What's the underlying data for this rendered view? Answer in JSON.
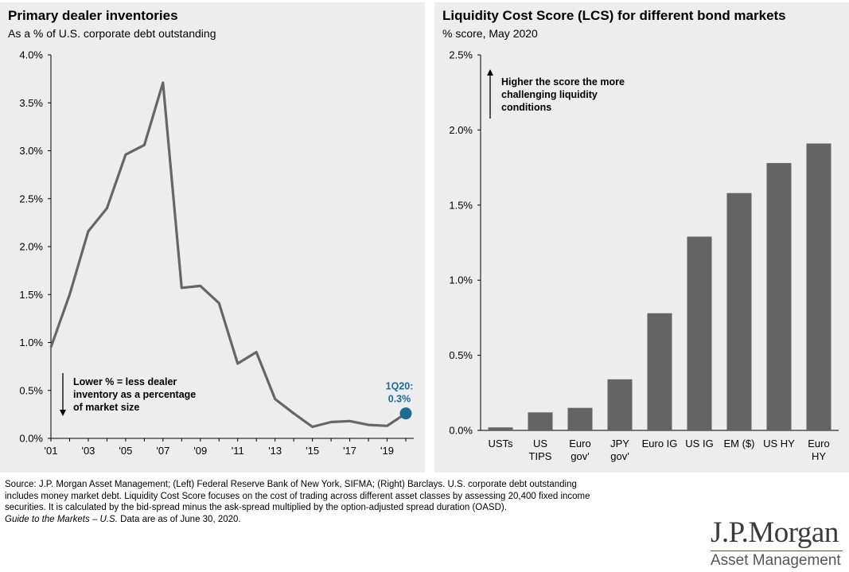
{
  "chart_data": [
    {
      "type": "line",
      "title": "Primary dealer inventories",
      "subtitle": "As a % of U.S. corporate debt outstanding",
      "ylim": [
        0,
        4.0
      ],
      "y_ticks": [
        "0.0%",
        "0.5%",
        "1.0%",
        "1.5%",
        "2.0%",
        "2.5%",
        "3.0%",
        "3.5%",
        "4.0%"
      ],
      "x_ticks": [
        "'01",
        "'03",
        "'05",
        "'07",
        "'09",
        "'11",
        "'13",
        "'15",
        "'17",
        "'19"
      ],
      "series": [
        {
          "x": [
            2001,
            2002,
            2003,
            2004,
            2005,
            2006,
            2007,
            2008,
            2009,
            2010,
            2011,
            2012,
            2013,
            2014,
            2015,
            2016,
            2017,
            2018,
            2019,
            2020
          ],
          "values": [
            0.95,
            1.5,
            2.16,
            2.4,
            2.96,
            3.06,
            3.71,
            1.57,
            1.59,
            1.41,
            0.78,
            0.9,
            0.41,
            0.26,
            0.12,
            0.17,
            0.18,
            0.14,
            0.13,
            0.26
          ]
        }
      ],
      "line_color": "#666666",
      "end_marker_color": "#1f6b94",
      "end_label_lines": [
        "1Q20:",
        "0.3%"
      ],
      "annotation_lines": [
        "Lower % = less dealer",
        "inventory as a percentage",
        "of market size"
      ]
    },
    {
      "type": "bar",
      "title": "Liquidity Cost Score (LCS) for different bond markets",
      "subtitle": "% score, May 2020",
      "ylim": [
        0,
        2.5
      ],
      "y_ticks": [
        "0.0%",
        "0.5%",
        "1.0%",
        "1.5%",
        "2.0%",
        "2.5%"
      ],
      "categories": [
        [
          "USTs"
        ],
        [
          "US",
          "TIPS"
        ],
        [
          "Euro",
          "gov'"
        ],
        [
          "JPY",
          "gov'"
        ],
        [
          "Euro IG"
        ],
        [
          "US IG"
        ],
        [
          "EM ($)"
        ],
        [
          "US HY"
        ],
        [
          "Euro",
          "HY"
        ]
      ],
      "values": [
        0.02,
        0.12,
        0.15,
        0.34,
        0.78,
        1.29,
        1.58,
        1.78,
        1.91
      ],
      "bar_color": "#646464",
      "annotation_lines": [
        "Higher the score the more",
        "challenging liquidity",
        "conditions"
      ]
    }
  ],
  "footer": {
    "source_1": "Source: J.P. Morgan Asset Management; (Left) Federal Reserve Bank of New York, SIFMA; (Right) Barclays. U.S. corporate debt outstanding",
    "source_2": "includes money market debt. Liquidity Cost Score focuses on the cost of trading across different asset classes by assessing 20,400 fixed income",
    "source_3": "securities. It is calculated by the bid-spread minus the ask-spread multiplied by the option-adjusted spread duration (OASD).",
    "guide_italic": "Guide to the Markets – U.S.",
    "guide_rest": " Data are as of June 30, 2020."
  },
  "logo": {
    "top": "J.P.Morgan",
    "bottom": "Asset Management"
  }
}
